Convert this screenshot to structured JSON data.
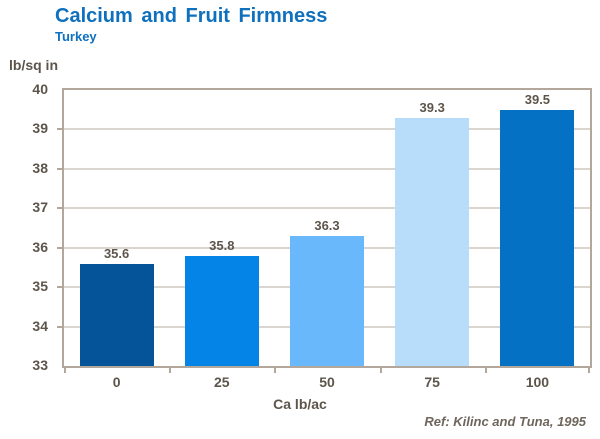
{
  "header": {
    "title": "Calcium and Fruit Firmness",
    "subtitle": "Turkey"
  },
  "footer": {
    "ref": "Ref: Kilinc and Tuna, 1995"
  },
  "chart_data": {
    "type": "bar",
    "title": "Calcium and Fruit Firmness",
    "subtitle": "Turkey",
    "categories": [
      "0",
      "25",
      "50",
      "75",
      "100"
    ],
    "values": [
      35.6,
      35.8,
      36.3,
      39.3,
      39.5
    ],
    "value_labels": [
      "35.6",
      "35.8",
      "36.3",
      "39.3",
      "39.5"
    ],
    "xlabel": "Ca lb/ac",
    "ylabel": "lb/sq in",
    "ylim": [
      33,
      40
    ],
    "ytick_step": 1,
    "grid": true,
    "legend": false,
    "bar_colors": [
      "#05549a",
      "#0584e8",
      "#68b8fb",
      "#b8ddfb",
      "#0571c4"
    ]
  },
  "colors": {
    "title_text": "#0f70bd",
    "axis_text": "#5d554b",
    "axis_line": "#b2a79a",
    "gridline": "#dad6cf",
    "ref_text": "#6e665c",
    "background": "#ffffff"
  }
}
